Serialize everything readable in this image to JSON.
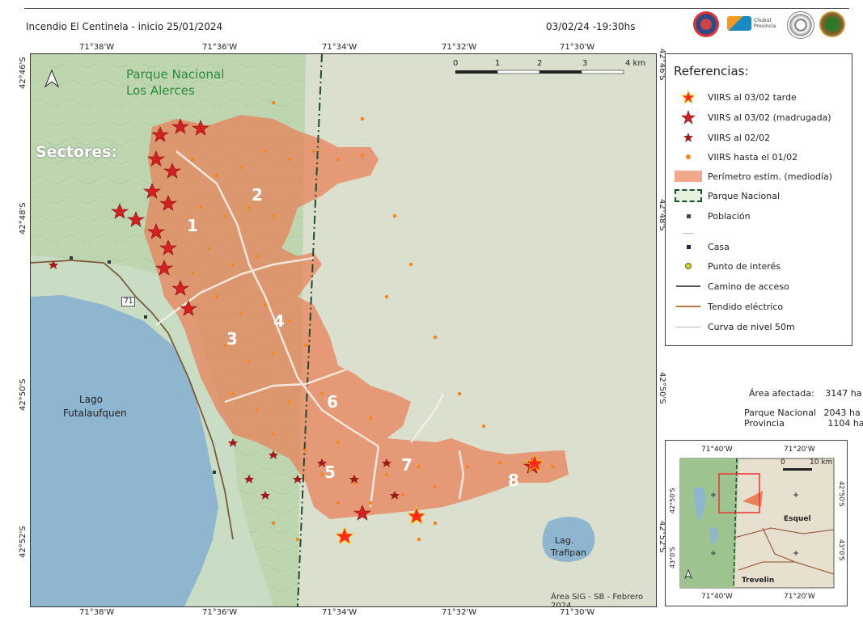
{
  "header": {
    "title": "Incendio El Centinela  -  inicio 25/01/2024",
    "datetime": "03/02/24 -19:30hs",
    "logos": [
      "logo-1",
      "logo-2",
      "logo-3",
      "logo-4"
    ]
  },
  "map": {
    "top_ticks": [
      "71°38'W",
      "71°36'W",
      "71°34'W",
      "71°32'W",
      "71°30'W"
    ],
    "bottom_ticks": [
      "71°38'W",
      "71°36'W",
      "71°34'W",
      "71°32'W",
      "71°30'W"
    ],
    "left_ticks": [
      "42°46'S",
      "42°48'S",
      "42°50'S",
      "42°52'S"
    ],
    "right_ticks": [
      "42°46'S",
      "42°48'S",
      "42°50'S",
      "42°52'S"
    ],
    "park_label_1": "Parque Nacional",
    "park_label_2": "Los Alerces",
    "sectors_label": "Sectores:",
    "sectors": [
      "1",
      "2",
      "3",
      "4",
      "5",
      "6",
      "7",
      "8"
    ],
    "lake_1": "Lago",
    "lake_2": "Futalaufquen",
    "lake_small_1": "Lag.",
    "lake_small_2": "Trafipan",
    "route": "71",
    "scale_labels": [
      "0",
      "1",
      "2",
      "3",
      "4 km"
    ],
    "credit": "Área SIG - SB - Febrero 2024"
  },
  "legend": {
    "title": "Referencias:",
    "items": [
      {
        "label": "VIIRS al 03/02 tarde",
        "icon": "large-red-star-icon"
      },
      {
        "label": "VIIRS al 03/02 (madrugada)",
        "icon": "dark-red-star-icon"
      },
      {
        "label": "VIIRS al 02/02",
        "icon": "small-star-icon"
      },
      {
        "label": "VIIRS hasta el 01/02",
        "icon": "orange-dot-icon"
      },
      {
        "label": "Perímetro estim. (mediodía)",
        "icon": "perimeter-fill-icon"
      },
      {
        "label": "Parque Nacional",
        "icon": "park-boundary-icon"
      },
      {
        "label": "Población",
        "icon": "population-square-icon"
      },
      {
        "label": "",
        "icon": "blank"
      },
      {
        "label": "Casa",
        "icon": "house-square-icon"
      },
      {
        "label": "Punto de interés",
        "icon": "poi-circle-icon"
      },
      {
        "label": "Camino de acceso",
        "icon": "road-line-icon"
      },
      {
        "label": "Tendido eléctrico",
        "icon": "power-line-icon"
      },
      {
        "label": "Curva de nivel 50m",
        "icon": "contour-line-icon"
      }
    ]
  },
  "stats": {
    "area_label": "Área afectada:",
    "area_value": "3147 ha",
    "park_label": "Parque Nacional",
    "park_value": "2043 ha",
    "prov_label": "Provincia",
    "prov_value": "1104 ha"
  },
  "inset": {
    "top_ticks": [
      "71°40'W",
      "71°20'W"
    ],
    "bottom_ticks": [
      "71°40'W",
      "71°20'W"
    ],
    "left_ticks": [
      "42°50'S",
      "43°0'S"
    ],
    "right_ticks": [
      "42°50'S",
      "43°0'S"
    ],
    "scale": [
      "0",
      "10 km"
    ],
    "town_1": "Esquel",
    "town_2": "Trevelin"
  },
  "colors": {
    "perimeter": "#e8825a",
    "viirs_dot": "#f08a1e",
    "star_red": "#e02020",
    "park_line": "#1a4d2e",
    "lake": "#8fb6cf",
    "park_text": "#2a8a3a"
  }
}
